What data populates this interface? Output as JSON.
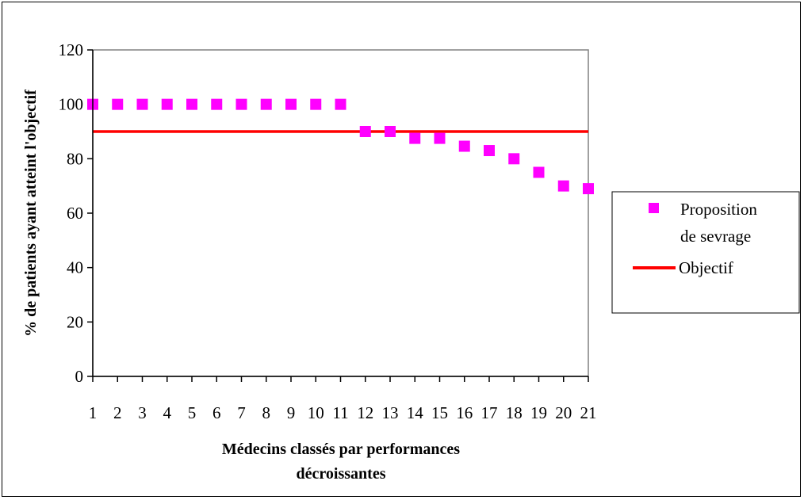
{
  "chart_data": {
    "type": "scatter",
    "xlabel_lines": [
      "Médecins classés par performances",
      "décroissantes"
    ],
    "ylabel": "% de patients ayant atteint l'objectif",
    "categories": [
      "1",
      "2",
      "3",
      "4",
      "5",
      "6",
      "7",
      "8",
      "9",
      "10",
      "11",
      "12",
      "13",
      "14",
      "15",
      "16",
      "17",
      "18",
      "19",
      "20",
      "21"
    ],
    "ylim": [
      0,
      120
    ],
    "yticks": [
      0,
      20,
      40,
      60,
      80,
      100,
      120
    ],
    "grid": false,
    "legend_position": "right",
    "series": [
      {
        "name": "Proposition de sevrage",
        "name_lines": [
          "Proposition",
          "de sevrage"
        ],
        "marker": "square",
        "color": "#FF00FF",
        "values": [
          100,
          100,
          100,
          100,
          100,
          100,
          100,
          100,
          100,
          100,
          100,
          90,
          90,
          87.5,
          87.5,
          84.6,
          83,
          80,
          75,
          70,
          69
        ]
      },
      {
        "name": "Objectif",
        "marker": "line",
        "color": "#FF0000",
        "value": 90
      }
    ]
  }
}
